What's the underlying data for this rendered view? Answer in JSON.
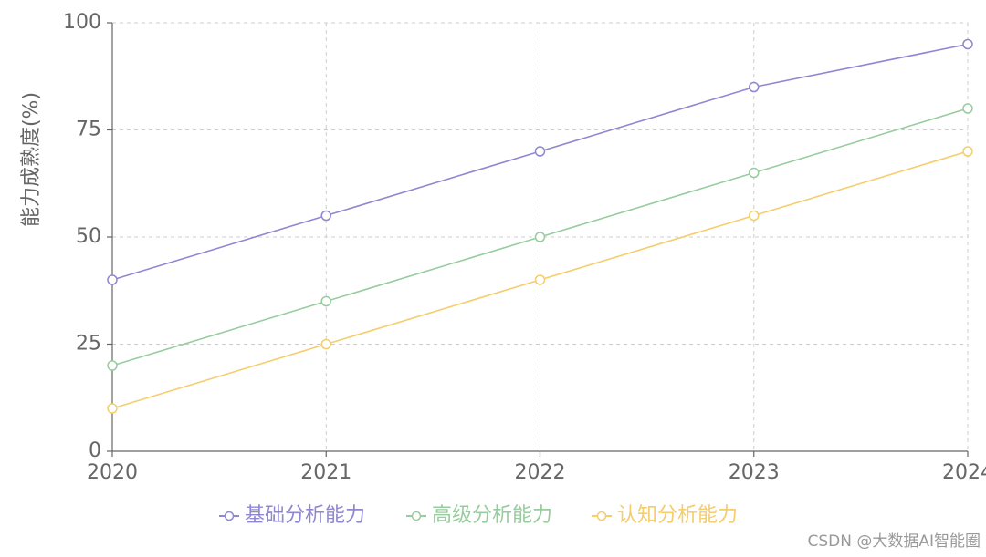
{
  "chart_data": {
    "type": "line",
    "y_label": "能力成熟度(%)",
    "x": [
      2020,
      2021,
      2022,
      2023,
      2024
    ],
    "xlim": [
      2020,
      2024
    ],
    "xticks": [
      2020,
      2021,
      2022,
      2023,
      2024
    ],
    "ylim": [
      0,
      100
    ],
    "yticks": [
      0,
      25,
      50,
      75,
      100
    ],
    "grid": true,
    "legend": "bottom",
    "series": [
      {
        "name": "基础分析能力",
        "color": "#8f88d0",
        "values": [
          40,
          55,
          70,
          85,
          95
        ]
      },
      {
        "name": "高级分析能力",
        "color": "#98cc9f",
        "values": [
          20,
          35,
          50,
          65,
          80
        ]
      },
      {
        "name": "认知分析能力",
        "color": "#f5cd6c",
        "values": [
          10,
          25,
          40,
          55,
          70
        ]
      }
    ],
    "watermark": "CSDN @大数据AI智能圈"
  }
}
